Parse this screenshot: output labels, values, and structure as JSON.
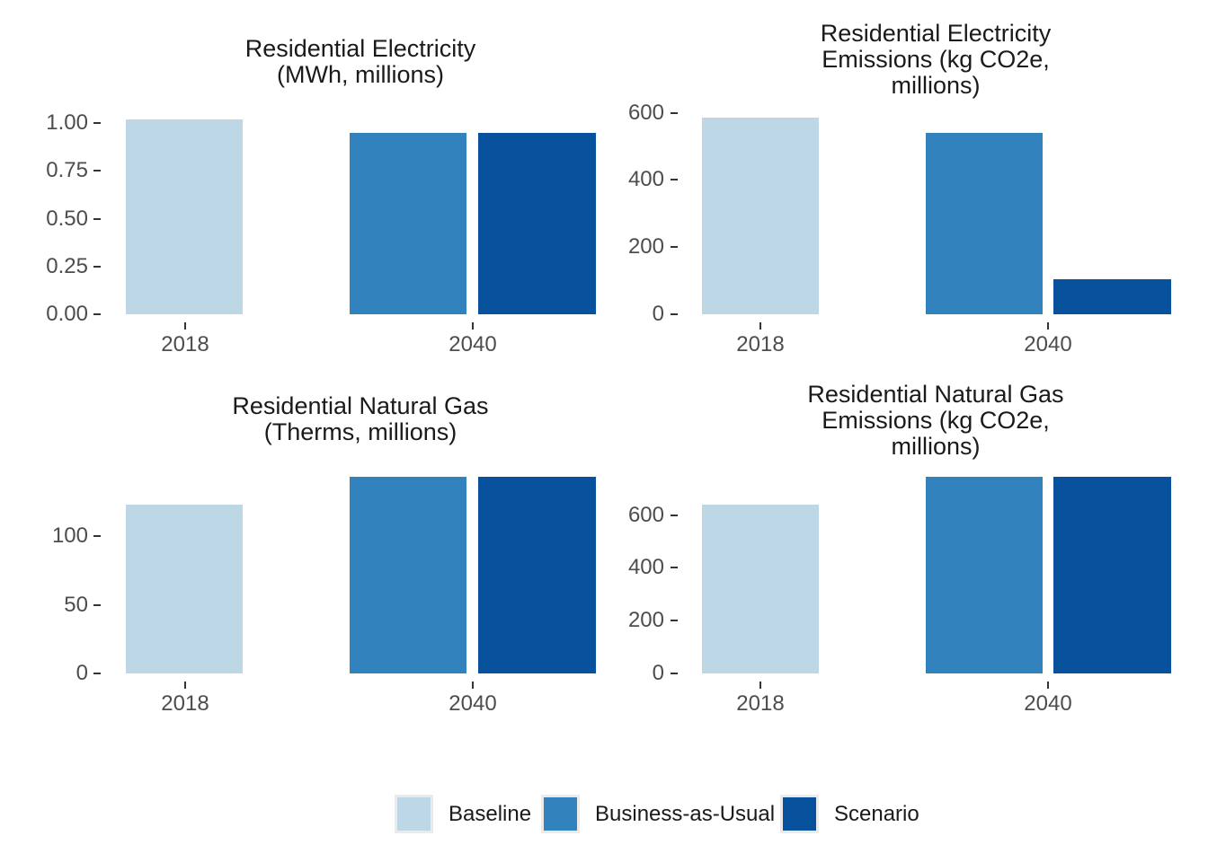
{
  "figure": {
    "background": "#ffffff",
    "text_colors": {
      "title": "#1a1a1a",
      "axis": "#4d4d4d",
      "tick": "#333333"
    },
    "legend": {
      "position": "bottom",
      "items": [
        {
          "label": "Baseline",
          "color": "#bdd7e7"
        },
        {
          "label": "Business-as-Usual",
          "color": "#3182bd"
        },
        {
          "label": "Scenario",
          "color": "#08519c"
        }
      ]
    }
  },
  "chart_data": [
    {
      "type": "bar",
      "title": "Residential Electricity (MWh, millions)",
      "title_lines": [
        "Residential Electricity",
        "(MWh, millions)"
      ],
      "categories": [
        "2018",
        "2040"
      ],
      "series": [
        {
          "name": "Baseline",
          "color": "#bdd7e7",
          "values": [
            1.02,
            null
          ]
        },
        {
          "name": "Business-as-Usual",
          "color": "#3182bd",
          "values": [
            null,
            0.95
          ]
        },
        {
          "name": "Scenario",
          "color": "#08519c",
          "values": [
            null,
            0.95
          ]
        }
      ],
      "xlabel": "",
      "ylabel": "",
      "ylim": [
        0,
        1.08
      ],
      "yticks": [
        0,
        0.25,
        0.5,
        0.75,
        1
      ],
      "ytick_labels": [
        "0.00",
        "0.25",
        "0.50",
        "0.75",
        "1.00"
      ],
      "grid": false,
      "legend_position": "shared-bottom"
    },
    {
      "type": "bar",
      "title": "Residential Electricity Emissions (kg CO2e, millions)",
      "title_lines": [
        "Residential Electricity",
        "Emissions (kg CO2e,",
        "millions)"
      ],
      "categories": [
        "2018",
        "2040"
      ],
      "series": [
        {
          "name": "Baseline",
          "color": "#bdd7e7",
          "values": [
            585,
            null
          ]
        },
        {
          "name": "Business-as-Usual",
          "color": "#3182bd",
          "values": [
            null,
            540
          ]
        },
        {
          "name": "Scenario",
          "color": "#08519c",
          "values": [
            null,
            105
          ]
        }
      ],
      "xlabel": "",
      "ylabel": "",
      "ylim": [
        0,
        620
      ],
      "yticks": [
        0,
        200,
        400,
        600
      ],
      "ytick_labels": [
        "0",
        "200",
        "400",
        "600"
      ],
      "grid": false,
      "legend_position": "shared-bottom"
    },
    {
      "type": "bar",
      "title": "Residential Natural Gas (Therms, millions)",
      "title_lines": [
        "Residential Natural Gas",
        "(Therms, millions)"
      ],
      "categories": [
        "2018",
        "2040"
      ],
      "series": [
        {
          "name": "Baseline",
          "color": "#bdd7e7",
          "values": [
            123,
            null
          ]
        },
        {
          "name": "Business-as-Usual",
          "color": "#3182bd",
          "values": [
            null,
            143
          ]
        },
        {
          "name": "Scenario",
          "color": "#08519c",
          "values": [
            null,
            143
          ]
        }
      ],
      "xlabel": "",
      "ylabel": "",
      "ylim": [
        0,
        150
      ],
      "yticks": [
        0,
        50,
        100
      ],
      "ytick_labels": [
        "0",
        "50",
        "100"
      ],
      "grid": false,
      "legend_position": "shared-bottom"
    },
    {
      "type": "bar",
      "title": "Residential Natural Gas Emissions (kg CO2e, millions)",
      "title_lines": [
        "Residential Natural Gas",
        "Emissions (kg CO2e,",
        "millions)"
      ],
      "categories": [
        "2018",
        "2040"
      ],
      "series": [
        {
          "name": "Baseline",
          "color": "#bdd7e7",
          "values": [
            640,
            null
          ]
        },
        {
          "name": "Business-as-Usual",
          "color": "#3182bd",
          "values": [
            null,
            745
          ]
        },
        {
          "name": "Scenario",
          "color": "#08519c",
          "values": [
            null,
            745
          ]
        }
      ],
      "xlabel": "",
      "ylabel": "",
      "ylim": [
        0,
        755
      ],
      "yticks": [
        0,
        200,
        400,
        600
      ],
      "ytick_labels": [
        "0",
        "200",
        "400",
        "600"
      ],
      "grid": false,
      "legend_position": "shared-bottom"
    }
  ]
}
